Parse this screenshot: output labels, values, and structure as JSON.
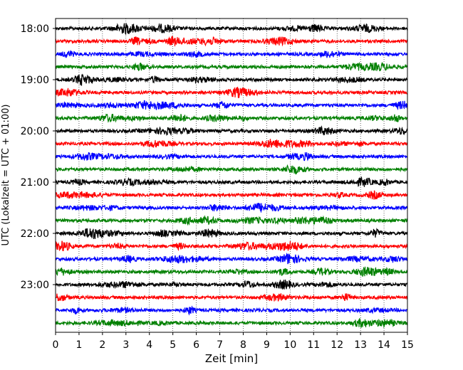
{
  "chart_data": {
    "type": "line",
    "title": "",
    "xlabel": "Zeit  [min]",
    "ylabel": "UTC (Lokalzeit = UTC + 01:00)",
    "xlim": [
      0,
      15
    ],
    "x_ticks": [
      "0",
      "1",
      "2",
      "3",
      "4",
      "5",
      "6",
      "7",
      "8",
      "9",
      "10",
      "11",
      "12",
      "13",
      "14",
      "15"
    ],
    "y_ticks": [
      "18:00",
      "19:00",
      "20:00",
      "21:00",
      "22:00",
      "23:00"
    ],
    "grid": "vertical dotted",
    "trace_interval_min": 15,
    "colors": [
      "#000000",
      "#ff0000",
      "#0000ff",
      "#008000"
    ],
    "rows": [
      {
        "start": "18:00",
        "color": "#000000"
      },
      {
        "start": "18:15",
        "color": "#ff0000"
      },
      {
        "start": "18:30",
        "color": "#0000ff"
      },
      {
        "start": "18:45",
        "color": "#008000"
      },
      {
        "start": "19:00",
        "color": "#000000"
      },
      {
        "start": "19:15",
        "color": "#ff0000"
      },
      {
        "start": "19:30",
        "color": "#0000ff"
      },
      {
        "start": "19:45",
        "color": "#008000"
      },
      {
        "start": "20:00",
        "color": "#000000"
      },
      {
        "start": "20:15",
        "color": "#ff0000"
      },
      {
        "start": "20:30",
        "color": "#0000ff"
      },
      {
        "start": "20:45",
        "color": "#008000"
      },
      {
        "start": "21:00",
        "color": "#000000"
      },
      {
        "start": "21:15",
        "color": "#ff0000"
      },
      {
        "start": "21:30",
        "color": "#0000ff"
      },
      {
        "start": "21:45",
        "color": "#008000"
      },
      {
        "start": "22:00",
        "color": "#000000"
      },
      {
        "start": "22:15",
        "color": "#ff0000"
      },
      {
        "start": "22:30",
        "color": "#0000ff"
      },
      {
        "start": "22:45",
        "color": "#008000"
      },
      {
        "start": "23:00",
        "color": "#000000"
      },
      {
        "start": "23:15",
        "color": "#ff0000"
      },
      {
        "start": "23:30",
        "color": "#0000ff"
      },
      {
        "start": "23:45",
        "color": "#008000"
      }
    ]
  }
}
